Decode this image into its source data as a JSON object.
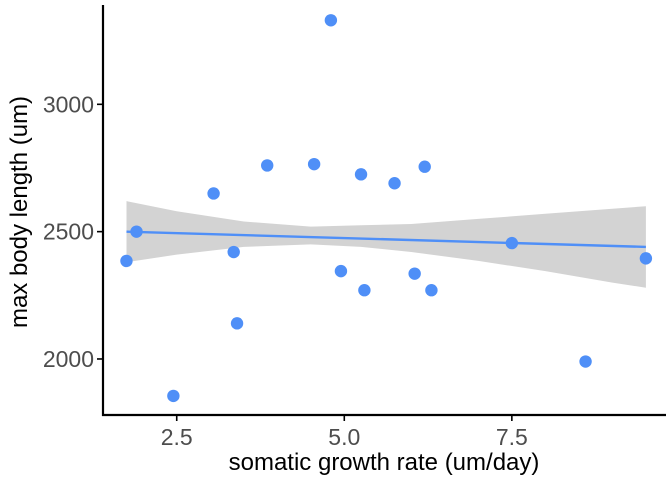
{
  "chart_data": {
    "type": "scatter",
    "xlabel": "somatic growth rate (um/day)",
    "ylabel": "max body length (um)",
    "xlim": [
      1.4,
      9.8
    ],
    "ylim": [
      1780,
      3390
    ],
    "x_ticks": [
      {
        "value": 2.5,
        "label": "2.5"
      },
      {
        "value": 5.0,
        "label": "5.0"
      },
      {
        "value": 7.5,
        "label": "7.5"
      }
    ],
    "y_ticks": [
      {
        "value": 2000,
        "label": "2000"
      },
      {
        "value": 2500,
        "label": "2500"
      },
      {
        "value": 3000,
        "label": "3000"
      }
    ],
    "grid": false,
    "series": [
      {
        "points": [
          {
            "x": 1.75,
            "y": 2385
          },
          {
            "x": 1.9,
            "y": 2500
          },
          {
            "x": 2.45,
            "y": 1855
          },
          {
            "x": 3.05,
            "y": 2650
          },
          {
            "x": 3.35,
            "y": 2420
          },
          {
            "x": 3.4,
            "y": 2140
          },
          {
            "x": 3.85,
            "y": 2760
          },
          {
            "x": 4.55,
            "y": 2765
          },
          {
            "x": 4.8,
            "y": 3330
          },
          {
            "x": 4.95,
            "y": 2345
          },
          {
            "x": 5.25,
            "y": 2725
          },
          {
            "x": 5.3,
            "y": 2270
          },
          {
            "x": 5.75,
            "y": 2690
          },
          {
            "x": 6.05,
            "y": 2335
          },
          {
            "x": 6.2,
            "y": 2755
          },
          {
            "x": 6.3,
            "y": 2270
          },
          {
            "x": 7.5,
            "y": 2455
          },
          {
            "x": 8.6,
            "y": 1990
          },
          {
            "x": 9.5,
            "y": 2395
          }
        ]
      }
    ],
    "trend_line": {
      "method": "linear",
      "x": [
        1.75,
        9.5
      ],
      "y": [
        2500,
        2440
      ]
    },
    "confidence_band": {
      "x": [
        1.75,
        2.5,
        3.5,
        4.5,
        5.25,
        6.0,
        7.0,
        8.0,
        9.0,
        9.5
      ],
      "lower": [
        2380,
        2410,
        2440,
        2450,
        2440,
        2420,
        2385,
        2345,
        2300,
        2280
      ],
      "upper": [
        2620,
        2580,
        2540,
        2520,
        2525,
        2530,
        2550,
        2570,
        2590,
        2600
      ]
    },
    "colors": {
      "point": "#4f8ff7",
      "line": "#4f8ff7",
      "band": "#d3d3d3",
      "axis": "#000000",
      "tick_text": "#4d4d4d"
    }
  }
}
